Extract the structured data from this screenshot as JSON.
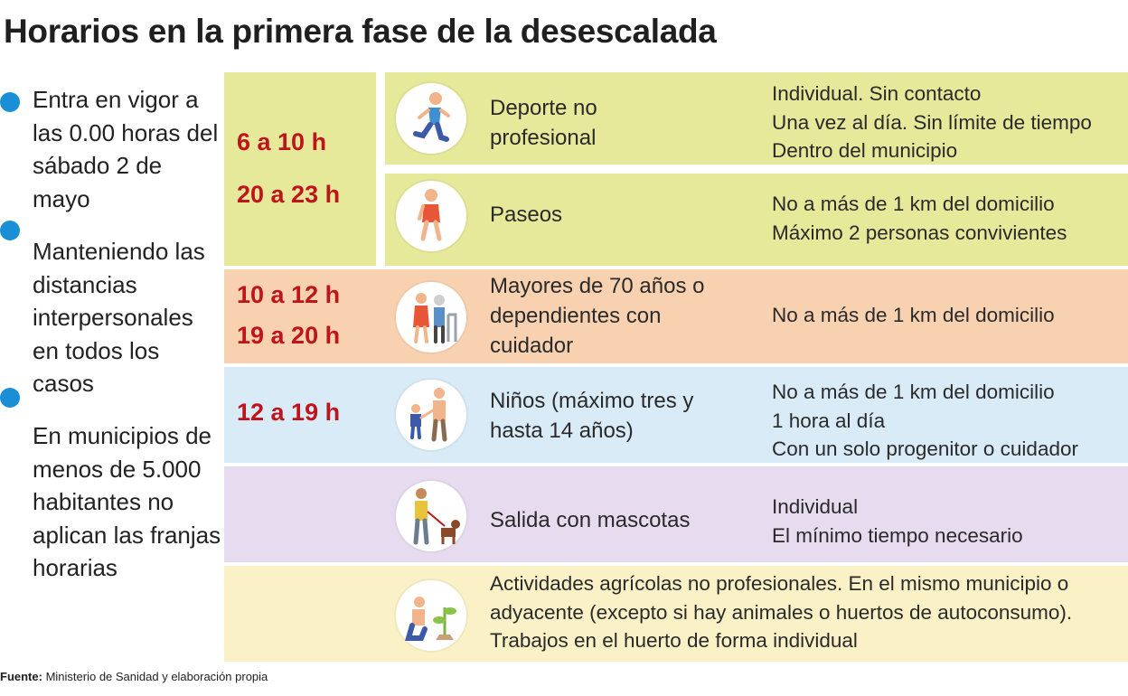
{
  "title": "Horarios en la primera fase de la desescalada",
  "notes": [
    "Entra en vigor a las 0.00 horas del sábado 2 de mayo",
    "Manteniendo las distancias interpersonales en todos los casos",
    "En municipios de menos de 5.000 habitantes no aplican las franjas horarias"
  ],
  "colors": {
    "bullet": "#1a8fd6",
    "time_text": "#c0141c",
    "band_yellow": "#e6e89a",
    "band_orange": "#f8d2b0",
    "band_blue": "#d8ebf7",
    "band_purple": "#e7dcef",
    "band_cream": "#fbf1c6"
  },
  "rows": [
    {
      "times": [
        "6 a 10 h",
        "20 a 23 h"
      ],
      "activities": [
        {
          "icon": "runner-icon",
          "label": "Deporte no profesional",
          "details": [
            "Individual. Sin contacto",
            "Una vez al día. Sin límite de tiempo",
            "Dentro del municipio"
          ]
        },
        {
          "icon": "walker-icon",
          "label": "Paseos",
          "details": [
            "No a más de 1 km del domicilio",
            "Máximo 2 personas convivientes"
          ]
        }
      ]
    },
    {
      "times": [
        "10 a 12 h",
        "19 a 20 h"
      ],
      "activities": [
        {
          "icon": "elderly-with-carer-icon",
          "label": "Mayores de 70 años o dependientes con cuidador",
          "details": [
            "No a más de 1 km del domicilio"
          ]
        }
      ]
    },
    {
      "times": [
        "12 a 19 h"
      ],
      "activities": [
        {
          "icon": "adult-with-child-icon",
          "label": "Niños (máximo tres y hasta 14 años)",
          "details": [
            "No a más de 1 km del domicilio",
            "1 hora al día",
            "Con un solo progenitor o cuidador"
          ]
        }
      ]
    },
    {
      "times": [],
      "activities": [
        {
          "icon": "dog-walking-icon",
          "label": "Salida con mascotas",
          "details": [
            "Individual",
            "El mínimo tiempo necesario"
          ]
        }
      ]
    },
    {
      "times": [],
      "activities": [
        {
          "icon": "gardening-icon",
          "label": "",
          "details": [
            "Actividades agrícolas no profesionales. En el mismo municipio o",
            "adyacente (excepto si hay animales o huertos de autoconsumo).",
            "Trabajos en el huerto de forma individual"
          ]
        }
      ]
    }
  ],
  "source": {
    "label": "Fuente:",
    "text": "Ministerio de Sanidad y elaboración propia"
  }
}
